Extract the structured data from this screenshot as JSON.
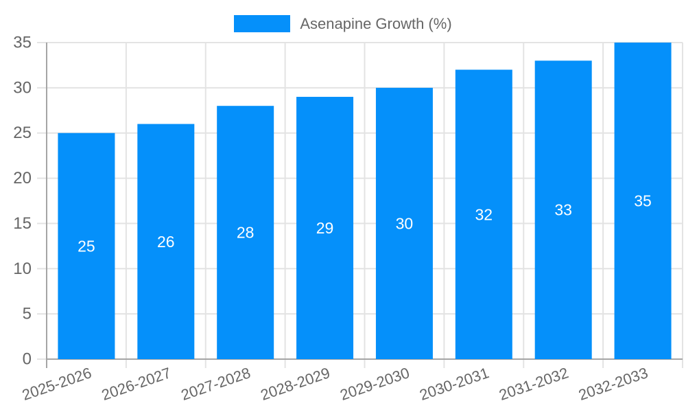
{
  "legend": {
    "label": "Asenapine Growth (%)"
  },
  "colors": {
    "bar": "#0590FA",
    "grid": "#E3E3E3",
    "axis": "#A5A5A5",
    "tick_text": "#666666",
    "bar_label_text": "#FFFFFF",
    "background": "#FFFFFF"
  },
  "chart_data": {
    "type": "bar",
    "title": "Asenapine Growth (%)",
    "categories": [
      "2025-2026",
      "2026-2027",
      "2027-2028",
      "2028-2029",
      "2029-2030",
      "2030-2031",
      "2031-2032",
      "2032-2033"
    ],
    "values": [
      25,
      26,
      28,
      29,
      30,
      32,
      33,
      35
    ],
    "xlabel": "",
    "ylabel": "",
    "ylim": [
      0,
      35
    ],
    "ytick_step": 5,
    "ytick_labels": [
      "0",
      "5",
      "10",
      "15",
      "20",
      "25",
      "30",
      "35"
    ],
    "grid": true,
    "legend_position": "top",
    "bar_labels_visible": true,
    "bar_label_position": "center"
  }
}
